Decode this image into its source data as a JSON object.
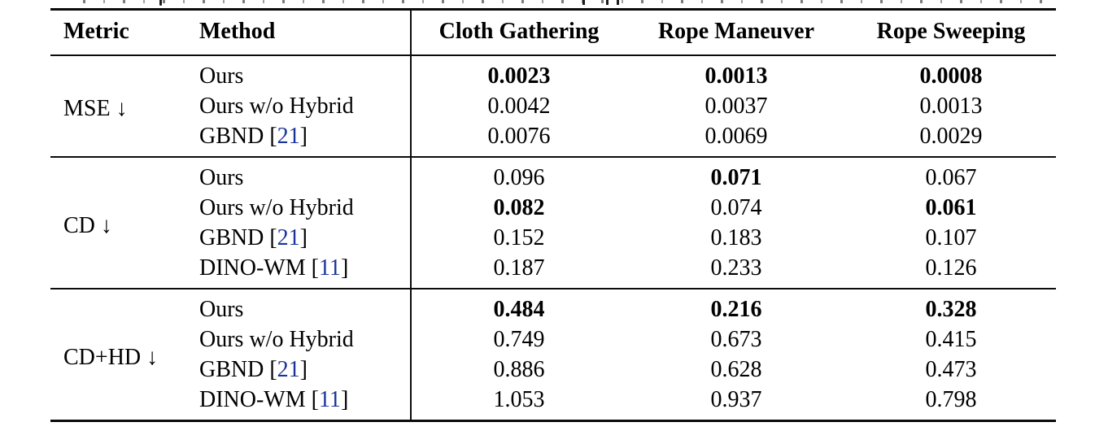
{
  "colors": {
    "citation_link": "#1a3399",
    "rule": "#0b0b0b",
    "text": "#000000"
  },
  "table": {
    "columns": {
      "metric": "Metric",
      "method": "Method",
      "task1": "Cloth Gathering",
      "task2": "Rope Maneuver",
      "task3": "Rope Sweeping"
    },
    "down_arrow": "↓",
    "groups": [
      {
        "metric": "MSE ↓",
        "rows": [
          {
            "method": "Ours",
            "cite": "",
            "cells": [
              {
                "v": "0.0023",
                "b": true
              },
              {
                "v": "0.0013",
                "b": true
              },
              {
                "v": "0.0008",
                "b": true
              }
            ]
          },
          {
            "method": "Ours w/o Hybrid",
            "cite": "",
            "cells": [
              {
                "v": "0.0042",
                "b": false
              },
              {
                "v": "0.0037",
                "b": false
              },
              {
                "v": "0.0013",
                "b": false
              }
            ]
          },
          {
            "method": "GBND",
            "cite": "21",
            "cells": [
              {
                "v": "0.0076",
                "b": false
              },
              {
                "v": "0.0069",
                "b": false
              },
              {
                "v": "0.0029",
                "b": false
              }
            ]
          }
        ]
      },
      {
        "metric": "CD ↓",
        "rows": [
          {
            "method": "Ours",
            "cite": "",
            "cells": [
              {
                "v": "0.096",
                "b": false
              },
              {
                "v": "0.071",
                "b": true
              },
              {
                "v": "0.067",
                "b": false
              }
            ]
          },
          {
            "method": "Ours w/o Hybrid",
            "cite": "",
            "cells": [
              {
                "v": "0.082",
                "b": true
              },
              {
                "v": "0.074",
                "b": false
              },
              {
                "v": "0.061",
                "b": true
              }
            ]
          },
          {
            "method": "GBND",
            "cite": "21",
            "cells": [
              {
                "v": "0.152",
                "b": false
              },
              {
                "v": "0.183",
                "b": false
              },
              {
                "v": "0.107",
                "b": false
              }
            ]
          },
          {
            "method": "DINO-WM",
            "cite": "11",
            "cells": [
              {
                "v": "0.187",
                "b": false
              },
              {
                "v": "0.233",
                "b": false
              },
              {
                "v": "0.126",
                "b": false
              }
            ]
          }
        ]
      },
      {
        "metric": "CD+HD ↓",
        "rows": [
          {
            "method": "Ours",
            "cite": "",
            "cells": [
              {
                "v": "0.484",
                "b": true
              },
              {
                "v": "0.216",
                "b": true
              },
              {
                "v": "0.328",
                "b": true
              }
            ]
          },
          {
            "method": "Ours w/o Hybrid",
            "cite": "",
            "cells": [
              {
                "v": "0.749",
                "b": false
              },
              {
                "v": "0.673",
                "b": false
              },
              {
                "v": "0.415",
                "b": false
              }
            ]
          },
          {
            "method": "GBND",
            "cite": "21",
            "cells": [
              {
                "v": "0.886",
                "b": false
              },
              {
                "v": "0.628",
                "b": false
              },
              {
                "v": "0.473",
                "b": false
              }
            ]
          },
          {
            "method": "DINO-WM",
            "cite": "11",
            "cells": [
              {
                "v": "1.053",
                "b": false
              },
              {
                "v": "0.937",
                "b": false
              },
              {
                "v": "0.798",
                "b": false
              }
            ]
          }
        ]
      }
    ]
  }
}
